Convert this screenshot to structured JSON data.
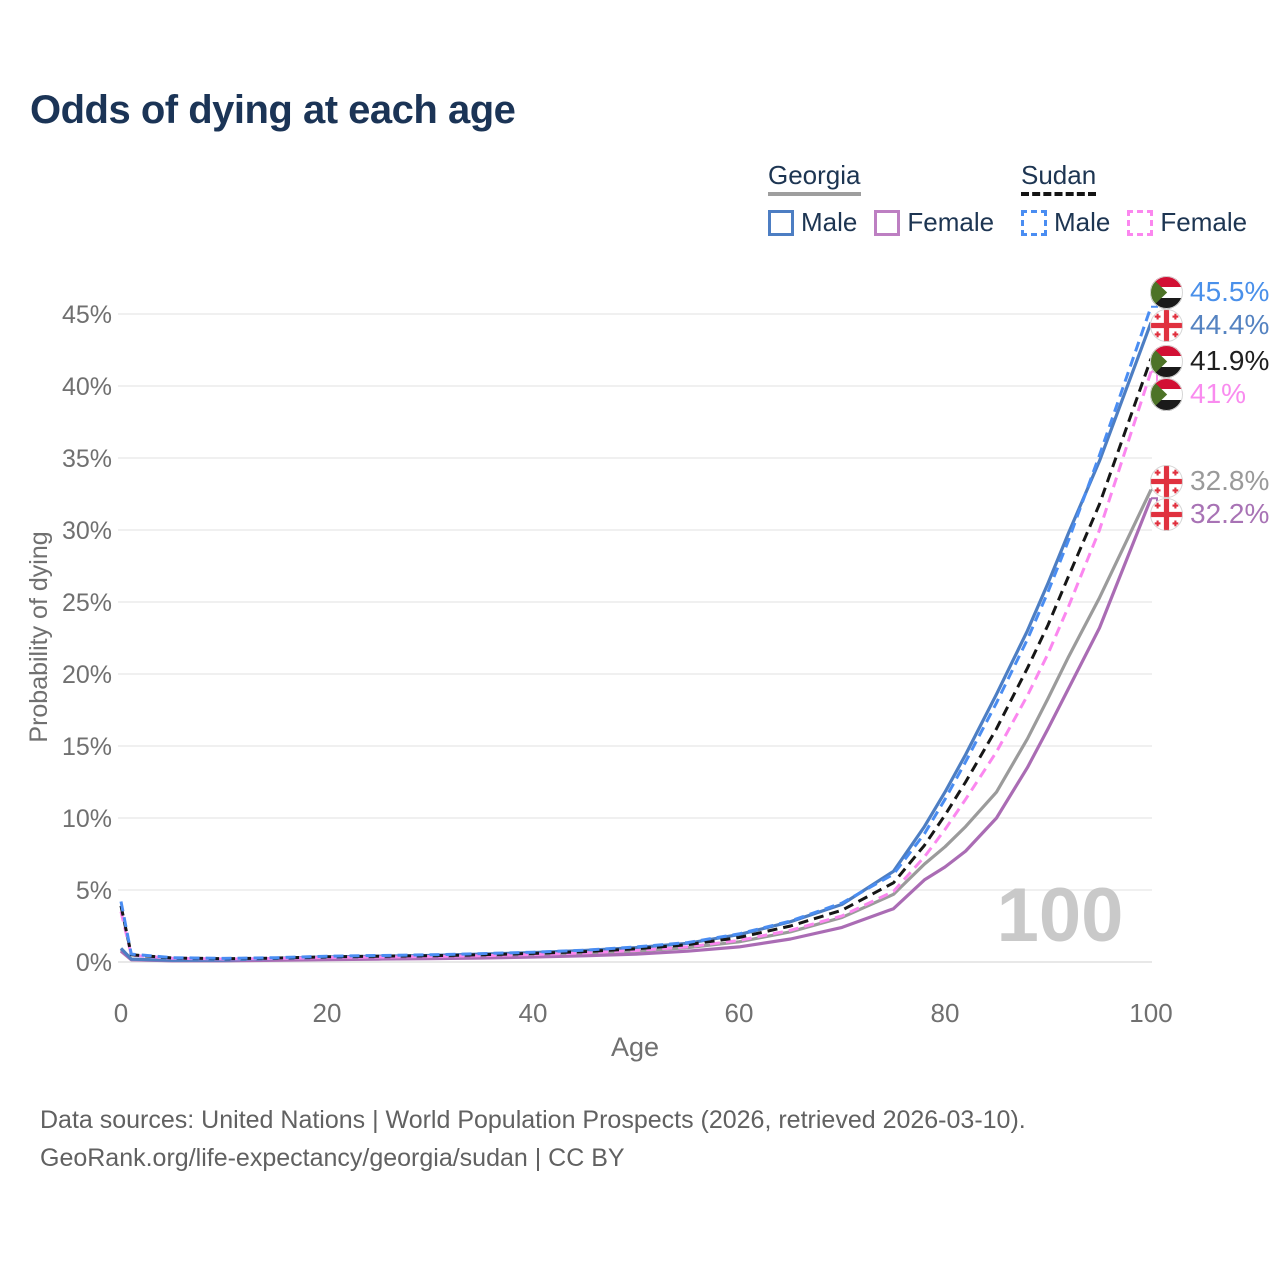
{
  "header": {
    "title": "Odds of dying at each age"
  },
  "legend": {
    "groups": [
      {
        "id": "georgia",
        "label": "Georgia",
        "line_style": "solid",
        "underline_color": "#9e9e9e",
        "items": [
          {
            "id": "georgia_male",
            "label": "Male",
            "color": "#4d7ec3"
          },
          {
            "id": "georgia_female",
            "label": "Female",
            "color": "#bd7fc2"
          }
        ]
      },
      {
        "id": "sudan",
        "label": "Sudan",
        "line_style": "dashed",
        "underline_color": "#141414",
        "items": [
          {
            "id": "sudan_male",
            "label": "Male",
            "color": "#4a8df2"
          },
          {
            "id": "sudan_female",
            "label": "Female",
            "color": "#fb87ef"
          }
        ]
      }
    ]
  },
  "chart_data": {
    "type": "line",
    "title": "Odds of dying at each age",
    "xlabel": "Age",
    "ylabel": "Probability of dying",
    "xlim": [
      0,
      100
    ],
    "ylim_percent": [
      0,
      47
    ],
    "x_ticks": [
      0,
      20,
      40,
      60,
      80,
      100
    ],
    "y_ticks": [
      {
        "value": 0,
        "label": "0%"
      },
      {
        "value": 5,
        "label": "5%"
      },
      {
        "value": 10,
        "label": "10%"
      },
      {
        "value": 15,
        "label": "15%"
      },
      {
        "value": 20,
        "label": "20%"
      },
      {
        "value": 25,
        "label": "25%"
      },
      {
        "value": 30,
        "label": "30%"
      },
      {
        "value": 35,
        "label": "35%"
      },
      {
        "value": 40,
        "label": "40%"
      },
      {
        "value": 45,
        "label": "45%"
      }
    ],
    "grid": true,
    "legend_position": "top-right",
    "watermark": "100",
    "x_ages": [
      0,
      1,
      5,
      10,
      15,
      20,
      25,
      30,
      35,
      40,
      45,
      50,
      55,
      60,
      65,
      70,
      75,
      78,
      80,
      82,
      85,
      88,
      90,
      92,
      95,
      100
    ],
    "series": [
      {
        "id": "georgia_all",
        "name": "Georgia",
        "country": "Georgia",
        "sex": "both",
        "color": "#9b9b9b",
        "dash": false,
        "flag_icon": "georgia-flag-icon",
        "end_label": "32.8%",
        "end_label_color": "#9a9a9a",
        "values_percent": [
          0.85,
          0.17,
          0.1,
          0.1,
          0.18,
          0.26,
          0.3,
          0.34,
          0.4,
          0.48,
          0.58,
          0.75,
          1.0,
          1.4,
          2.1,
          3.1,
          4.7,
          6.8,
          8.0,
          9.4,
          11.8,
          15.5,
          18.3,
          21.2,
          25.3,
          32.8
        ]
      },
      {
        "id": "georgia_female",
        "name": "Georgia Female",
        "country": "Georgia",
        "sex": "female",
        "color": "#aa6cb4",
        "dash": false,
        "flag_icon": "georgia-flag-icon",
        "end_label": "32.2%",
        "end_label_color": "#a873b5",
        "values_percent": [
          0.75,
          0.15,
          0.08,
          0.08,
          0.12,
          0.17,
          0.2,
          0.23,
          0.28,
          0.35,
          0.43,
          0.55,
          0.75,
          1.05,
          1.6,
          2.4,
          3.7,
          5.7,
          6.6,
          7.7,
          10.0,
          13.5,
          16.2,
          19.0,
          23.2,
          32.2
        ]
      },
      {
        "id": "georgia_male",
        "name": "Georgia Male",
        "country": "Georgia",
        "sex": "male",
        "color": "#4d7ec3",
        "dash": false,
        "flag_icon": "georgia-flag-icon",
        "end_label": "44.4%",
        "end_label_color": "#5583c1",
        "values_percent": [
          0.95,
          0.2,
          0.12,
          0.13,
          0.25,
          0.35,
          0.4,
          0.45,
          0.55,
          0.65,
          0.8,
          1.0,
          1.3,
          1.9,
          2.8,
          4.0,
          6.3,
          9.4,
          11.8,
          14.4,
          18.6,
          23.0,
          26.3,
          29.8,
          34.8,
          44.4
        ]
      },
      {
        "id": "sudan_female",
        "name": "Sudan Female",
        "country": "Sudan",
        "sex": "female",
        "color": "#fb87ef",
        "dash": true,
        "flag_icon": "sudan-flag-icon",
        "end_label": "41%",
        "end_label_color": "#f98bef",
        "values_percent": [
          3.5,
          0.47,
          0.26,
          0.21,
          0.24,
          0.31,
          0.34,
          0.38,
          0.44,
          0.52,
          0.63,
          0.8,
          1.05,
          1.5,
          2.2,
          3.2,
          4.9,
          7.3,
          9.2,
          11.3,
          14.6,
          18.5,
          21.4,
          24.7,
          30.0,
          41.0
        ]
      },
      {
        "id": "sudan_all",
        "name": "Sudan",
        "country": "Sudan",
        "sex": "both",
        "color": "#161616",
        "dash": true,
        "flag_icon": "sudan-flag-icon",
        "end_label": "41.9%",
        "end_label_color": "#1f1f1f",
        "values_percent": [
          3.9,
          0.5,
          0.28,
          0.23,
          0.27,
          0.36,
          0.4,
          0.44,
          0.5,
          0.6,
          0.72,
          0.92,
          1.2,
          1.7,
          2.5,
          3.6,
          5.5,
          8.1,
          10.2,
          12.5,
          16.2,
          20.4,
          23.4,
          26.8,
          31.8,
          41.9
        ]
      },
      {
        "id": "sudan_male",
        "name": "Sudan Male",
        "country": "Sudan",
        "sex": "male",
        "color": "#4a8df2",
        "dash": true,
        "flag_icon": "sudan-flag-icon",
        "end_label": "45.5%",
        "end_label_color": "#4a90ea",
        "values_percent": [
          4.2,
          0.55,
          0.3,
          0.25,
          0.3,
          0.4,
          0.45,
          0.5,
          0.58,
          0.68,
          0.82,
          1.05,
          1.35,
          1.95,
          2.85,
          4.1,
          6.1,
          8.9,
          11.3,
          13.9,
          18.0,
          22.4,
          25.7,
          29.3,
          35.2,
          45.5
        ]
      }
    ],
    "end_label_order_top_to_bottom": [
      "sudan_male",
      "georgia_male",
      "sudan_all",
      "sudan_female",
      "georgia_all",
      "georgia_female"
    ]
  },
  "icons": [
    "georgia-flag-icon",
    "sudan-flag-icon"
  ],
  "footer": {
    "line1": "Data sources: United Nations | World Population Prospects (2026, retrieved 2026-03-10).",
    "line2": "GeoRank.org/life-expectancy/georgia/sudan | CC BY"
  }
}
